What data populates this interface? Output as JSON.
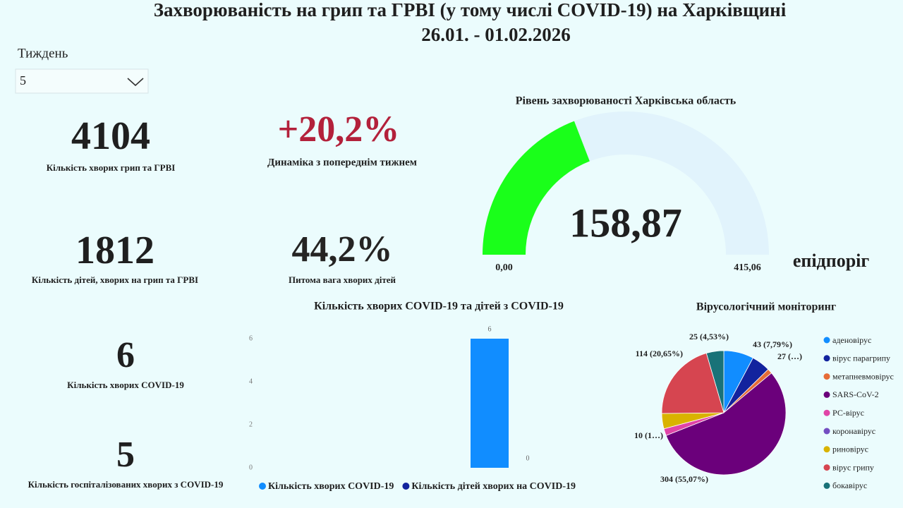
{
  "header": {
    "title": "Захворюваність на грип та ГРВІ (у тому числі COVID-19) на Харківщині",
    "subtitle": "26.01. - 01.02.2026"
  },
  "filter": {
    "label": "Тиждень",
    "value": "5"
  },
  "kpis": [
    {
      "value": "4104",
      "label": "Кількість хворих грип та ГРВІ"
    },
    {
      "value": "+20,2%",
      "label": "Динаміка з попереднім тижнем"
    },
    {
      "value": "1812",
      "label": "Кількість дітей, хворих на грип та ГРВІ"
    },
    {
      "value": "44,2%",
      "label": "Питома вага хворих дітей"
    },
    {
      "value": "6",
      "label": "Кількість хворих COVID-19"
    },
    {
      "value": "5",
      "label": "Кількість госпіталізованих хворих з COVID-19"
    }
  ],
  "chart_data": [
    {
      "type": "gauge",
      "title": "Рівень захворюваності Харківська область",
      "values": [
        158.87
      ],
      "value_labels": [
        "158,87"
      ],
      "ylim": [
        0,
        415.06
      ],
      "yticks": [
        {
          "value": 0,
          "label": "0,00"
        },
        {
          "value": 415.06,
          "label": "415,06"
        }
      ],
      "annotation": "епідпоріг",
      "color": "#1aff1a",
      "track_color": "#e1f3fc"
    },
    {
      "type": "bar",
      "title": "Кількість хворих COVID-19 та дітей з COVID-19",
      "categories": [
        null
      ],
      "series": [
        {
          "name": "Кількість хворих COVID-19",
          "color": "#118dff",
          "values": [
            6
          ]
        },
        {
          "name": "Кількість дітей хворих на COVID-19",
          "color": "#12239e",
          "values": [
            0
          ]
        }
      ],
      "ylim": [
        0,
        6
      ],
      "yticks": [
        0,
        2,
        4,
        6
      ],
      "legend": "bottom"
    },
    {
      "type": "pie",
      "title": "Вірусологічний моніторинг",
      "categories": [
        "аденовірус",
        "вірус парагрипу",
        "метапневмовірус",
        "SARS-CoV-2",
        "РС-вірус",
        "коронавірус",
        "риновірус",
        "вірус грипу",
        "бокавірус"
      ],
      "values": [
        43,
        27,
        7,
        304,
        10,
        0,
        22,
        114,
        25
      ],
      "value_labels": [
        "43 (7,79%)",
        "27 (…)",
        null,
        "304 (55,07%)",
        "10 (1…)",
        null,
        null,
        "114 (20,65%)",
        "25 (4,53%)"
      ],
      "colors": [
        "#118dff",
        "#12239e",
        "#e66c37",
        "#6b007b",
        "#e044a7",
        "#744ec2",
        "#d9b300",
        "#d64550",
        "#197278"
      ],
      "legend": "right"
    }
  ]
}
